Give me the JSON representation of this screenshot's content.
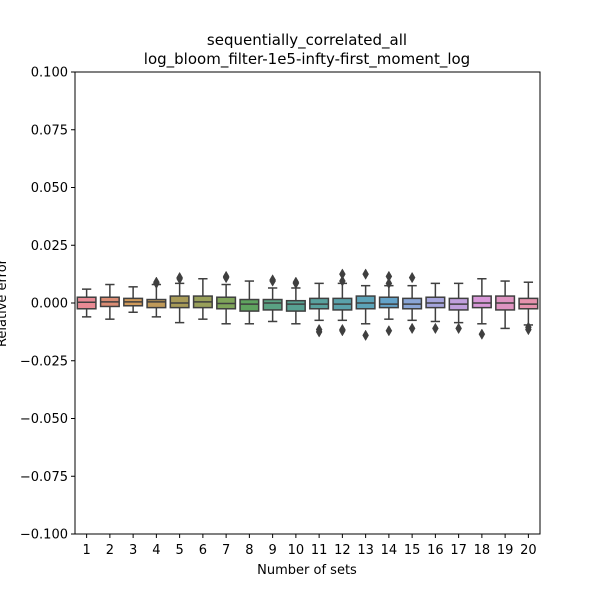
{
  "chart_data": {
    "type": "box",
    "title": "sequentially_correlated_all",
    "subtitle": "log_bloom_filter-1e5-infty-first_moment_log",
    "xlabel": "Number of sets",
    "ylabel": "Relative error",
    "ylim": [
      -0.1,
      0.1
    ],
    "yticks": [
      -0.1,
      -0.075,
      -0.05,
      -0.025,
      0.0,
      0.025,
      0.05,
      0.075,
      0.1
    ],
    "ytick_labels": [
      "−0.100",
      "−0.075",
      "−0.050",
      "−0.025",
      "0.000",
      "0.025",
      "0.050",
      "0.075",
      "0.100"
    ],
    "categories": [
      "1",
      "2",
      "3",
      "4",
      "5",
      "6",
      "7",
      "8",
      "9",
      "10",
      "11",
      "12",
      "13",
      "14",
      "15",
      "16",
      "17",
      "18",
      "19",
      "20"
    ],
    "grid": false,
    "boxes": [
      {
        "color": "#e88a94",
        "whislo": -0.006,
        "q1": -0.0025,
        "med": 0.0003,
        "q3": 0.0025,
        "whishi": 0.006,
        "fliers": []
      },
      {
        "color": "#da8c74",
        "whislo": -0.007,
        "q1": -0.0015,
        "med": 0.0005,
        "q3": 0.0025,
        "whishi": 0.008,
        "fliers": []
      },
      {
        "color": "#d09a5b",
        "whislo": -0.004,
        "q1": -0.0012,
        "med": 0.0005,
        "q3": 0.002,
        "whishi": 0.007,
        "fliers": []
      },
      {
        "color": "#c09a59",
        "whislo": -0.006,
        "q1": -0.002,
        "med": 0.0005,
        "q3": 0.0015,
        "whishi": 0.008,
        "fliers": [
          0.009,
          0.0085
        ]
      },
      {
        "color": "#a89b58",
        "whislo": -0.0085,
        "q1": -0.002,
        "med": 0.0,
        "q3": 0.003,
        "whishi": 0.0085,
        "fliers": [
          0.011,
          0.0105
        ]
      },
      {
        "color": "#99a05a",
        "whislo": -0.007,
        "q1": -0.002,
        "med": 0.0005,
        "q3": 0.003,
        "whishi": 0.0105,
        "fliers": []
      },
      {
        "color": "#7fa45a",
        "whislo": -0.009,
        "q1": -0.0025,
        "med": -0.0002,
        "q3": 0.0025,
        "whishi": 0.008,
        "fliers": [
          0.0115,
          0.011
        ]
      },
      {
        "color": "#5fa35f",
        "whislo": -0.009,
        "q1": -0.0035,
        "med": -0.0005,
        "q3": 0.0015,
        "whishi": 0.0095,
        "fliers": []
      },
      {
        "color": "#5aa283",
        "whislo": -0.008,
        "q1": -0.003,
        "med": 0.0,
        "q3": 0.0015,
        "whishi": 0.0065,
        "fliers": [
          0.01,
          0.0095
        ]
      },
      {
        "color": "#58a192",
        "whislo": -0.009,
        "q1": -0.0035,
        "med": -0.0005,
        "q3": 0.001,
        "whishi": 0.0065,
        "fliers": [
          0.009,
          0.0085
        ]
      },
      {
        "color": "#59a19e",
        "whislo": -0.0075,
        "q1": -0.0025,
        "med": -0.0005,
        "q3": 0.002,
        "whishi": 0.0085,
        "fliers": [
          -0.0115,
          -0.0125
        ]
      },
      {
        "color": "#5aa2ab",
        "whislo": -0.0075,
        "q1": -0.003,
        "med": -0.0005,
        "q3": 0.002,
        "whishi": 0.0085,
        "fliers": [
          0.0125,
          0.0095,
          -0.0115,
          -0.012
        ]
      },
      {
        "color": "#5ca3b8",
        "whislo": -0.009,
        "q1": -0.0025,
        "med": 0.0,
        "q3": 0.003,
        "whishi": 0.0075,
        "fliers": [
          0.0125,
          -0.014
        ]
      },
      {
        "color": "#64a3c9",
        "whislo": -0.007,
        "q1": -0.002,
        "med": -0.0005,
        "q3": 0.0025,
        "whishi": 0.0075,
        "fliers": [
          0.0115,
          0.0085,
          -0.012
        ]
      },
      {
        "color": "#8aa6d6",
        "whislo": -0.0075,
        "q1": -0.0025,
        "med": -0.0005,
        "q3": 0.002,
        "whishi": 0.0075,
        "fliers": [
          0.011,
          -0.011
        ]
      },
      {
        "color": "#a6a5dc",
        "whislo": -0.008,
        "q1": -0.002,
        "med": 0.0,
        "q3": 0.0025,
        "whishi": 0.0085,
        "fliers": [
          -0.011
        ]
      },
      {
        "color": "#c09fdc",
        "whislo": -0.0085,
        "q1": -0.003,
        "med": -0.0005,
        "q3": 0.002,
        "whishi": 0.0085,
        "fliers": [
          -0.011
        ]
      },
      {
        "color": "#d898d8",
        "whislo": -0.009,
        "q1": -0.002,
        "med": 0.0,
        "q3": 0.003,
        "whishi": 0.0105,
        "fliers": [
          -0.0135
        ]
      },
      {
        "color": "#df94c1",
        "whislo": -0.011,
        "q1": -0.003,
        "med": 0.0,
        "q3": 0.003,
        "whishi": 0.0095,
        "fliers": []
      },
      {
        "color": "#e592ae",
        "whislo": -0.0095,
        "q1": -0.0025,
        "med": -0.0005,
        "q3": 0.002,
        "whishi": 0.009,
        "fliers": [
          -0.0105,
          -0.0115
        ]
      }
    ]
  }
}
